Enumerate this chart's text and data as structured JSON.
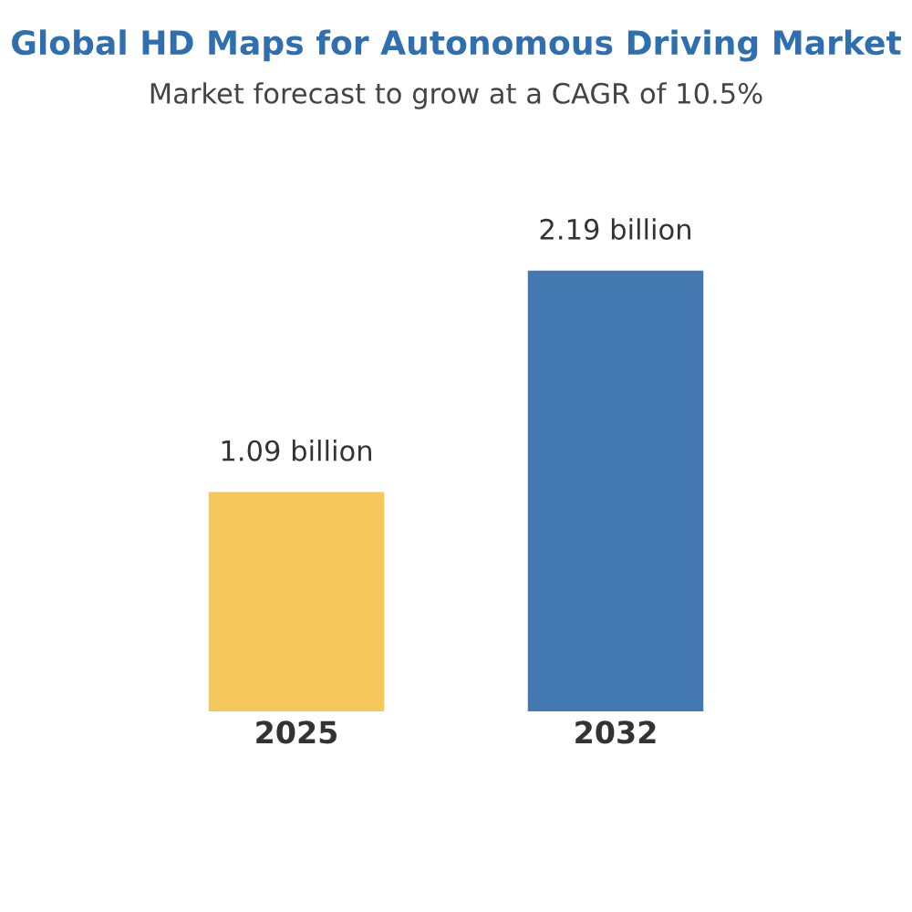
{
  "chart_data": {
    "type": "bar",
    "title": "Global HD Maps for Autonomous Driving Market",
    "subtitle": "Market forecast to grow at a CAGR of 10.5%",
    "categories": [
      "2025",
      "2032"
    ],
    "values": [
      1.09,
      2.19
    ],
    "colors": [
      "#f5c85c",
      "#4379b0"
    ],
    "value_labels": [
      "1.09 billion",
      "2.19 billion"
    ]
  }
}
